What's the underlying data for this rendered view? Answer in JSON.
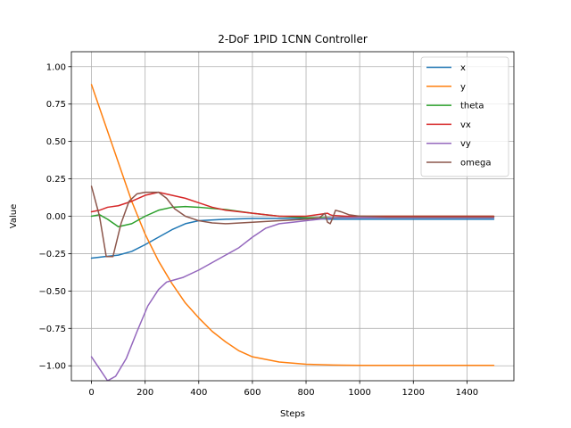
{
  "chart_data": {
    "type": "line",
    "title": "2-DoF 1PID 1CNN Controller",
    "xlabel": "Steps",
    "ylabel": "Value",
    "xlim": [
      -75,
      1575
    ],
    "ylim": [
      -1.1,
      1.1
    ],
    "xticks": [
      0,
      200,
      400,
      600,
      800,
      1000,
      1200,
      1400
    ],
    "yticks": [
      -1.0,
      -0.75,
      -0.5,
      -0.25,
      0.0,
      0.25,
      0.5,
      0.75,
      1.0
    ],
    "xtick_labels": [
      "0",
      "200",
      "400",
      "600",
      "800",
      "1000",
      "1200",
      "1400"
    ],
    "ytick_labels": [
      "−1.00",
      "−0.75",
      "−0.50",
      "−0.25",
      "0.00",
      "0.25",
      "0.50",
      "0.75",
      "1.00"
    ],
    "grid": true,
    "legend_position": "top-right",
    "series": [
      {
        "name": "x",
        "color": "#1f77b4",
        "points": [
          [
            0,
            -0.28
          ],
          [
            50,
            -0.27
          ],
          [
            100,
            -0.26
          ],
          [
            150,
            -0.235
          ],
          [
            200,
            -0.19
          ],
          [
            250,
            -0.14
          ],
          [
            300,
            -0.09
          ],
          [
            350,
            -0.05
          ],
          [
            400,
            -0.03
          ],
          [
            500,
            -0.02
          ],
          [
            600,
            -0.015
          ],
          [
            800,
            -0.015
          ],
          [
            900,
            -0.02
          ],
          [
            1000,
            -0.02
          ],
          [
            1500,
            -0.02
          ]
        ]
      },
      {
        "name": "y",
        "color": "#ff7f0e",
        "points": [
          [
            0,
            0.88
          ],
          [
            50,
            0.62
          ],
          [
            100,
            0.36
          ],
          [
            150,
            0.1
          ],
          [
            200,
            -0.12
          ],
          [
            250,
            -0.3
          ],
          [
            300,
            -0.45
          ],
          [
            350,
            -0.58
          ],
          [
            400,
            -0.68
          ],
          [
            450,
            -0.77
          ],
          [
            500,
            -0.84
          ],
          [
            550,
            -0.9
          ],
          [
            600,
            -0.94
          ],
          [
            700,
            -0.975
          ],
          [
            800,
            -0.99
          ],
          [
            900,
            -0.995
          ],
          [
            1000,
            -0.997
          ],
          [
            1500,
            -0.997
          ]
        ]
      },
      {
        "name": "theta",
        "color": "#2ca02c",
        "points": [
          [
            0,
            0.0
          ],
          [
            30,
            0.01
          ],
          [
            60,
            -0.02
          ],
          [
            100,
            -0.07
          ],
          [
            150,
            -0.05
          ],
          [
            200,
            0.0
          ],
          [
            250,
            0.04
          ],
          [
            300,
            0.06
          ],
          [
            350,
            0.065
          ],
          [
            400,
            0.06
          ],
          [
            500,
            0.045
          ],
          [
            600,
            0.02
          ],
          [
            700,
            0.0
          ],
          [
            800,
            -0.01
          ],
          [
            900,
            -0.01
          ],
          [
            1000,
            0.0
          ],
          [
            1500,
            0.0
          ]
        ]
      },
      {
        "name": "vx",
        "color": "#d62728",
        "points": [
          [
            0,
            0.03
          ],
          [
            30,
            0.04
          ],
          [
            60,
            0.06
          ],
          [
            100,
            0.07
          ],
          [
            150,
            0.1
          ],
          [
            200,
            0.14
          ],
          [
            250,
            0.16
          ],
          [
            300,
            0.14
          ],
          [
            350,
            0.12
          ],
          [
            400,
            0.09
          ],
          [
            450,
            0.06
          ],
          [
            500,
            0.04
          ],
          [
            600,
            0.02
          ],
          [
            700,
            0.0
          ],
          [
            800,
            0.0
          ],
          [
            860,
            0.015
          ],
          [
            880,
            0.02
          ],
          [
            890,
            0.01
          ],
          [
            900,
            0.005
          ],
          [
            950,
            0.0
          ],
          [
            1000,
            0.0
          ],
          [
            1500,
            0.0
          ]
        ]
      },
      {
        "name": "vy",
        "color": "#9467bd",
        "points": [
          [
            0,
            -0.94
          ],
          [
            30,
            -1.02
          ],
          [
            60,
            -1.1
          ],
          [
            90,
            -1.07
          ],
          [
            130,
            -0.95
          ],
          [
            170,
            -0.77
          ],
          [
            210,
            -0.6
          ],
          [
            250,
            -0.49
          ],
          [
            280,
            -0.44
          ],
          [
            300,
            -0.43
          ],
          [
            340,
            -0.41
          ],
          [
            400,
            -0.36
          ],
          [
            450,
            -0.31
          ],
          [
            500,
            -0.26
          ],
          [
            550,
            -0.21
          ],
          [
            600,
            -0.14
          ],
          [
            650,
            -0.08
          ],
          [
            700,
            -0.05
          ],
          [
            750,
            -0.04
          ],
          [
            800,
            -0.03
          ],
          [
            850,
            -0.02
          ],
          [
            900,
            -0.01
          ],
          [
            950,
            -0.01
          ],
          [
            1000,
            -0.01
          ],
          [
            1500,
            -0.01
          ]
        ]
      },
      {
        "name": "omega",
        "color": "#8c564b",
        "points": [
          [
            0,
            0.2
          ],
          [
            30,
            0.0
          ],
          [
            55,
            -0.27
          ],
          [
            80,
            -0.27
          ],
          [
            110,
            -0.05
          ],
          [
            140,
            0.1
          ],
          [
            170,
            0.15
          ],
          [
            200,
            0.16
          ],
          [
            220,
            0.16
          ],
          [
            250,
            0.16
          ],
          [
            280,
            0.12
          ],
          [
            310,
            0.05
          ],
          [
            350,
            0.0
          ],
          [
            400,
            -0.03
          ],
          [
            450,
            -0.045
          ],
          [
            500,
            -0.05
          ],
          [
            600,
            -0.04
          ],
          [
            700,
            -0.03
          ],
          [
            800,
            -0.02
          ],
          [
            850,
            -0.01
          ],
          [
            870,
            0.02
          ],
          [
            880,
            -0.04
          ],
          [
            890,
            -0.05
          ],
          [
            900,
            -0.01
          ],
          [
            910,
            0.04
          ],
          [
            930,
            0.03
          ],
          [
            960,
            0.01
          ],
          [
            1000,
            0.0
          ],
          [
            1100,
            -0.005
          ],
          [
            1500,
            -0.005
          ]
        ]
      }
    ]
  }
}
